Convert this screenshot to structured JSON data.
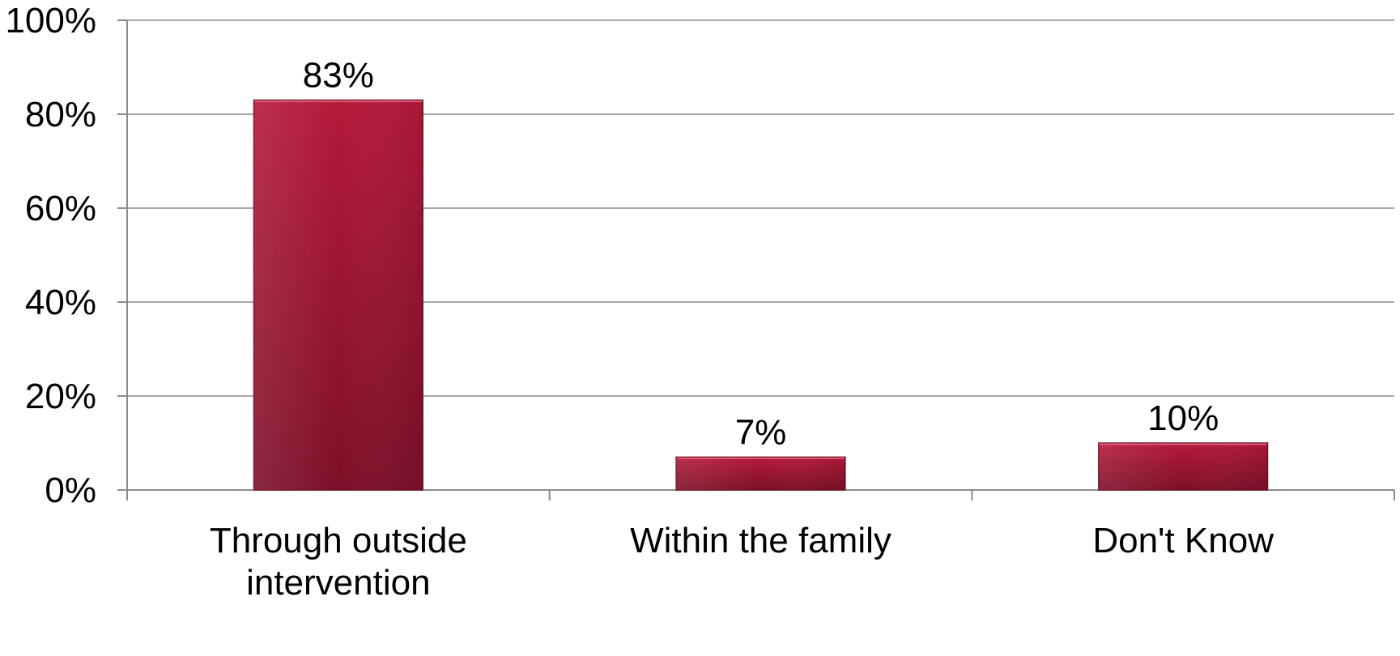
{
  "chart_data": {
    "type": "bar",
    "title": "",
    "xlabel": "",
    "ylabel": "",
    "categories": [
      [
        "Through outside",
        "intervention"
      ],
      [
        "Within the family"
      ],
      [
        "Don't Know"
      ]
    ],
    "values": [
      83,
      7,
      10
    ],
    "data_labels": [
      "83%",
      "7%",
      "10%"
    ],
    "ylim": [
      0,
      100
    ],
    "yticks": [
      0,
      20,
      40,
      60,
      80,
      100
    ],
    "ytick_labels": [
      "0%",
      "20%",
      "40%",
      "60%",
      "80%",
      "100%"
    ],
    "grid": true,
    "legend": "none",
    "colors": {
      "bar_top": "#b5193a",
      "bar_bottom": "#7d1028",
      "bar_edge": "#6e0e22",
      "grid": "#8c8c8c"
    }
  }
}
